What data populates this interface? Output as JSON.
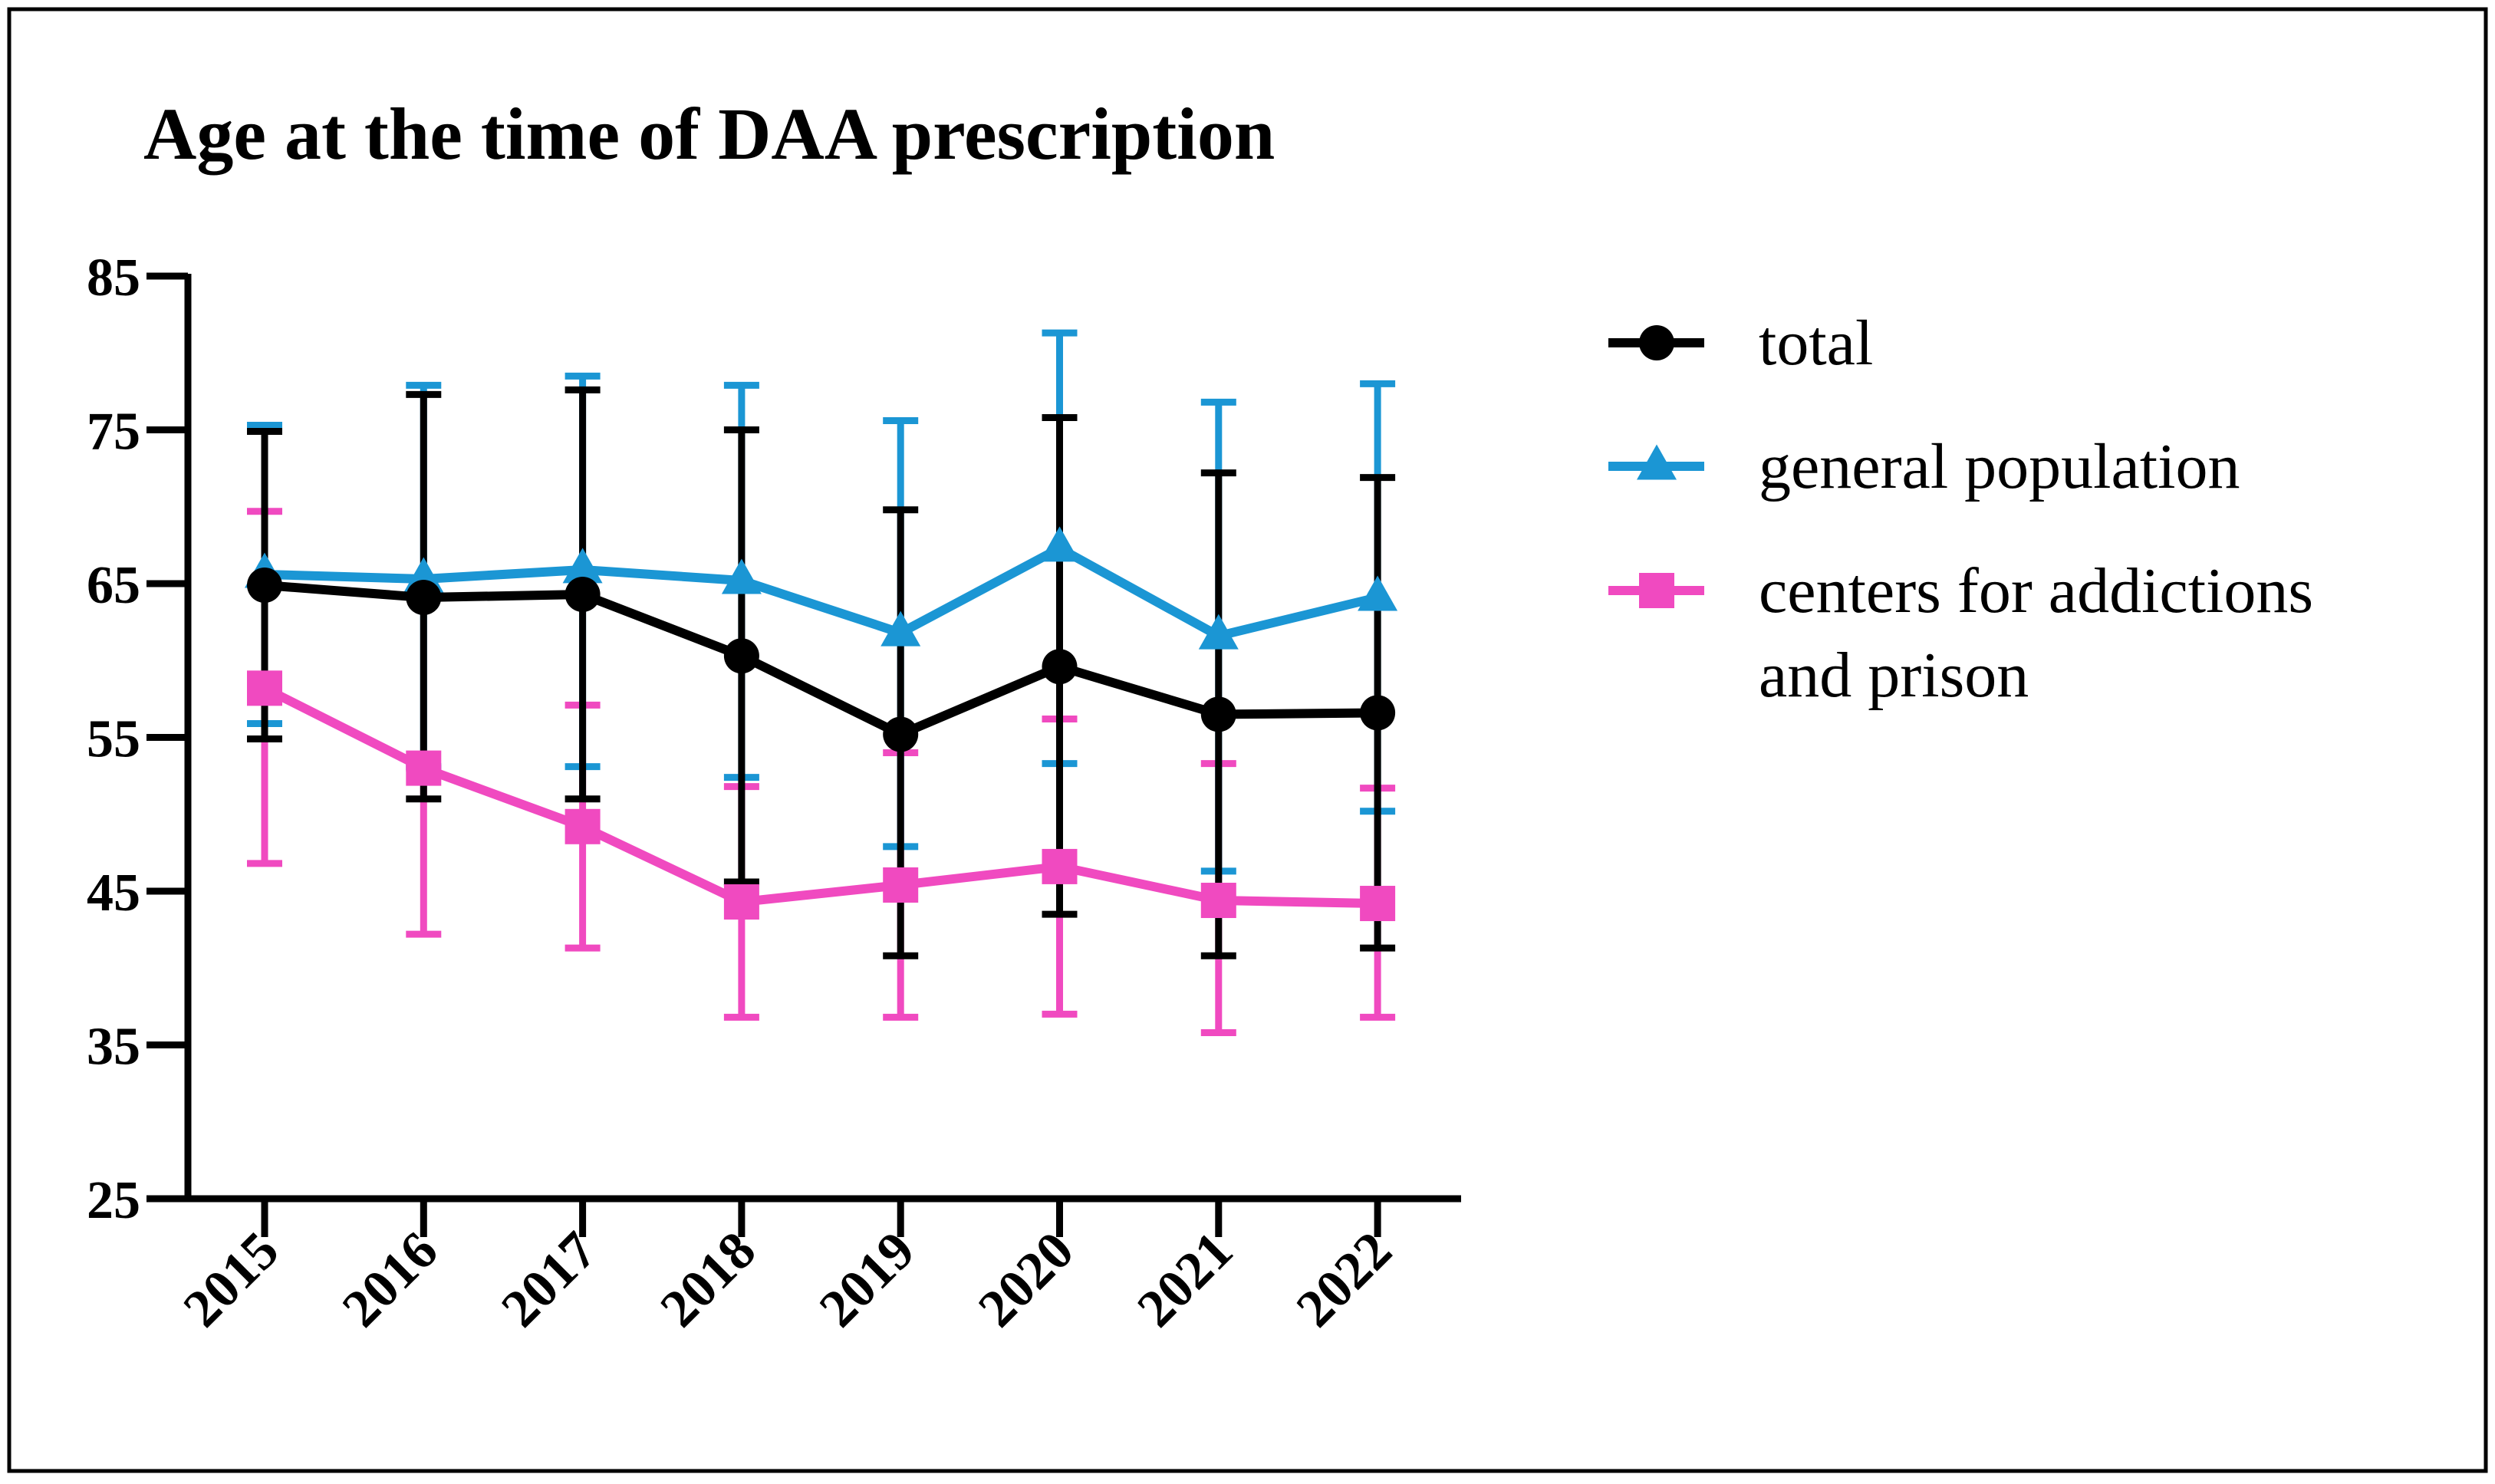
{
  "chart_data": {
    "type": "line",
    "title": "Age at the time of DAA prescription",
    "xlabel": "",
    "ylabel": "",
    "ylim": [
      25,
      85
    ],
    "yticks": [
      25,
      35,
      45,
      55,
      65,
      75,
      85
    ],
    "categories": [
      "2015",
      "2016",
      "2017",
      "2018",
      "2019",
      "2020",
      "2021",
      "2022"
    ],
    "legend_position": "right",
    "error_bars": true,
    "series": [
      {
        "name": "total",
        "marker": "circle",
        "color": "#000000",
        "values": [
          64.9,
          64.1,
          64.3,
          60.3,
          55.2,
          59.6,
          56.5,
          56.6
        ],
        "error_low": [
          54.9,
          51.0,
          51.0,
          45.6,
          40.8,
          43.5,
          40.8,
          41.3
        ],
        "error_high": [
          74.9,
          77.3,
          77.6,
          75.0,
          69.8,
          75.8,
          72.2,
          71.9
        ]
      },
      {
        "name": "general population",
        "marker": "triangle",
        "color": "#1b96d4",
        "values": [
          65.6,
          65.3,
          65.9,
          65.2,
          61.8,
          67.3,
          61.6,
          64.1
        ],
        "error_low": [
          55.9,
          53.1,
          53.1,
          52.4,
          47.9,
          53.3,
          46.3,
          50.2
        ],
        "error_high": [
          75.3,
          77.9,
          78.5,
          77.9,
          75.6,
          81.3,
          76.8,
          78.0
        ]
      },
      {
        "name": "centers for addictions and prison",
        "marker": "square",
        "color": "#f04ac0",
        "values": [
          58.2,
          53.0,
          49.2,
          44.3,
          45.4,
          46.6,
          44.4,
          44.2
        ],
        "error_low": [
          46.8,
          42.2,
          41.3,
          36.8,
          36.8,
          37.0,
          35.8,
          36.8
        ],
        "error_high": [
          69.7,
          53.0,
          57.1,
          51.8,
          54.0,
          56.2,
          53.3,
          51.7
        ]
      }
    ],
    "legend_lines": [
      [
        "total"
      ],
      [
        "general population"
      ],
      [
        "centers for addictions",
        "and prison"
      ]
    ]
  }
}
